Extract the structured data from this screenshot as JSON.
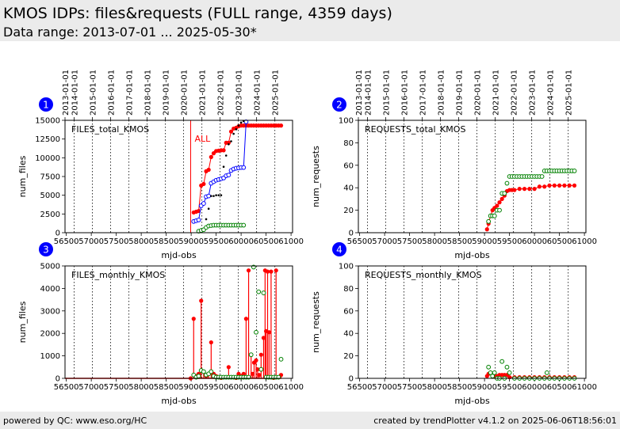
{
  "header": {
    "title": "KMOS IDPs: files&requests (FULL range, 4359 days)",
    "subtitle": "Data range: 2013-07-01 ... 2025-05-30*"
  },
  "footer": {
    "left": "powered by QC: www.eso.org/HC",
    "right": "created by trendPlotter v4.1.2 on 2025-06-06T18:56:01"
  },
  "colors": {
    "total": "#ff0000",
    "blue": "#0000ff",
    "green": "#008000",
    "black": "#000000",
    "badge": "#0000ff",
    "grid": "#000000"
  },
  "top_date_ticks": [
    {
      "mjd": 56474,
      "label": "2013-01-01"
    },
    {
      "mjd": 56658,
      "label": "2014-01-01"
    },
    {
      "mjd": 57023,
      "label": "2015-01-01"
    },
    {
      "mjd": 57388,
      "label": "2016-01-01"
    },
    {
      "mjd": 57754,
      "label": "2017-01-01"
    },
    {
      "mjd": 58119,
      "label": "2018-01-01"
    },
    {
      "mjd": 58484,
      "label": "2019-01-01"
    },
    {
      "mjd": 58849,
      "label": "2020-01-01"
    },
    {
      "mjd": 59215,
      "label": "2021-01-01"
    },
    {
      "mjd": 59580,
      "label": "2022-01-01"
    },
    {
      "mjd": 59945,
      "label": "2023-01-01"
    },
    {
      "mjd": 60310,
      "label": "2024-01-01"
    },
    {
      "mjd": 60676,
      "label": "2025-01-01"
    }
  ],
  "chart_data": [
    {
      "id": 1,
      "badge": "1",
      "type": "scatter",
      "title": "FILES_total_KMOS",
      "xlabel": "mjd-obs",
      "ylabel": "num_files",
      "xlim": [
        56474,
        61030
      ],
      "ylim": [
        0,
        15000
      ],
      "yticks": [
        0,
        2500,
        5000,
        7500,
        10000,
        12500,
        15000
      ],
      "xticks": [
        56500,
        57000,
        57500,
        58000,
        58500,
        59000,
        59500,
        60000,
        60500,
        61000
      ],
      "marker_line": {
        "x": 58990,
        "label": "ALL"
      },
      "series": [
        {
          "color": "red",
          "style": "filled-line",
          "x": [
            59050,
            59100,
            59150,
            59200,
            59250,
            59300,
            59350,
            59400,
            59450,
            59500,
            59550,
            59600,
            59650,
            59700,
            59750,
            59800,
            59850,
            59900,
            59950,
            60000,
            60050,
            60100,
            60150,
            60200,
            60250,
            60300,
            60350,
            60400,
            60450,
            60500,
            60550,
            60600,
            60650,
            60700,
            60750,
            60800
          ],
          "y": [
            2700,
            2800,
            2900,
            6300,
            6500,
            8200,
            8400,
            10100,
            10600,
            10900,
            10950,
            11000,
            11000,
            12000,
            12000,
            13500,
            13900,
            14000,
            14200,
            14300,
            14300,
            14300,
            14300,
            14300,
            14300,
            14300,
            14300,
            14300,
            14300,
            14300,
            14300,
            14300,
            14300,
            14300,
            14300,
            14300
          ]
        },
        {
          "color": "blue",
          "style": "open-line",
          "x": [
            59050,
            59100,
            59150,
            59200,
            59250,
            59300,
            59350,
            59400,
            59450,
            59500,
            59550,
            59600,
            59650,
            59700,
            59750,
            59800,
            59850,
            59900,
            59950,
            60000,
            60050,
            60100
          ],
          "y": [
            1500,
            1600,
            1700,
            3600,
            3900,
            4800,
            4900,
            6600,
            6800,
            7000,
            7100,
            7200,
            7300,
            7600,
            7700,
            8300,
            8500,
            8600,
            8650,
            8700,
            8700,
            14800
          ]
        },
        {
          "color": "black",
          "style": "small",
          "x": [
            59300,
            59350,
            59400,
            59450,
            59500,
            59550,
            59600,
            59650,
            59700,
            59750,
            59800,
            59850,
            59900,
            59950,
            60000,
            60050
          ],
          "y": [
            1800,
            3200,
            4900,
            4900,
            5000,
            5000,
            5000,
            8800,
            10300,
            11800,
            12200,
            13200,
            13800,
            14300,
            14700,
            14900
          ]
        },
        {
          "color": "green",
          "style": "open",
          "x": [
            59150,
            59200,
            59250,
            59300,
            59350,
            59400,
            59450,
            59500,
            59550,
            59600,
            59650,
            59700,
            59750,
            59800,
            59850,
            59900,
            59950,
            60000,
            60050
          ],
          "y": [
            200,
            300,
            400,
            700,
            900,
            950,
            1000,
            1000,
            1000,
            1000,
            1000,
            1000,
            1000,
            1000,
            1000,
            1000,
            1000,
            1000,
            1000
          ]
        }
      ]
    },
    {
      "id": 2,
      "badge": "2",
      "type": "scatter",
      "title": "REQUESTS_total_KMOS",
      "xlabel": "mjd-obs",
      "ylabel": "num_requests",
      "xlim": [
        56474,
        61030
      ],
      "ylim": [
        0,
        100
      ],
      "yticks": [
        0,
        20,
        40,
        60,
        80,
        100
      ],
      "xticks": [
        56500,
        57000,
        57500,
        58000,
        58500,
        59000,
        59500,
        60000,
        60500,
        61000
      ],
      "series": [
        {
          "color": "red",
          "style": "filled-line",
          "x": [
            59050,
            59080,
            59120,
            59160,
            59200,
            59250,
            59300,
            59350,
            59400,
            59450,
            59500,
            59550,
            59600,
            59700,
            59800,
            59900,
            60000,
            60100,
            60200,
            60300,
            60400,
            60500,
            60600,
            60700,
            60800
          ],
          "y": [
            3,
            8,
            15,
            20,
            22,
            24,
            27,
            30,
            33,
            37,
            38,
            38,
            38,
            39,
            39,
            39,
            39,
            41,
            41,
            42,
            42,
            42,
            42,
            42,
            42
          ]
        },
        {
          "color": "green",
          "style": "open",
          "x": [
            59080,
            59120,
            59160,
            59200,
            59250,
            59300,
            59350,
            59400,
            59450,
            59500,
            59550,
            59600,
            59650,
            59700,
            59750,
            59800,
            59850,
            59900,
            59950,
            60000,
            60050,
            60100,
            60150,
            60200,
            60250,
            60300,
            60350,
            60400,
            60450,
            60500,
            60550,
            60600,
            60650,
            60700,
            60750,
            60800
          ],
          "y": [
            10,
            15,
            15,
            15,
            20,
            20,
            35,
            35,
            44,
            50,
            50,
            50,
            50,
            50,
            50,
            50,
            50,
            50,
            50,
            50,
            50,
            50,
            50,
            55,
            55,
            55,
            55,
            55,
            55,
            55,
            55,
            55,
            55,
            55,
            55,
            55
          ]
        }
      ]
    },
    {
      "id": 3,
      "badge": "3",
      "type": "scatter",
      "title": "FILES_monthly_KMOS",
      "xlabel": "mjd-obs",
      "ylabel": "num_files",
      "xlim": [
        56474,
        61030
      ],
      "ylim": [
        0,
        5000
      ],
      "yticks": [
        0,
        1000,
        2000,
        3000,
        4000,
        5000
      ],
      "xticks": [
        56500,
        57000,
        57500,
        58000,
        58500,
        59000,
        59500,
        60000,
        60500,
        61000
      ],
      "series": [
        {
          "color": "red",
          "style": "stem",
          "x": [
            58990,
            59050,
            59100,
            59150,
            59200,
            59250,
            59300,
            59350,
            59400,
            59450,
            59500,
            59550,
            59600,
            59650,
            59700,
            59750,
            59800,
            59850,
            59900,
            59950,
            60000,
            60050,
            60100,
            60150,
            60200,
            60230,
            60260,
            60300,
            60330,
            60360,
            60400,
            60450,
            60480,
            60500,
            60530,
            60560,
            60600,
            60650,
            60700,
            60750,
            60800
          ],
          "y": [
            0,
            2650,
            100,
            200,
            3450,
            300,
            100,
            200,
            1600,
            200,
            100,
            50,
            20,
            50,
            50,
            500,
            50,
            50,
            20,
            200,
            100,
            200,
            2650,
            4800,
            1050,
            200,
            700,
            800,
            400,
            150,
            1050,
            1800,
            4800,
            2100,
            4750,
            2050,
            4750,
            20,
            4800,
            50,
            150
          ]
        },
        {
          "color": "green",
          "style": "open",
          "x": [
            59050,
            59100,
            59150,
            59200,
            59250,
            59300,
            59350,
            59400,
            59450,
            59500,
            59550,
            59600,
            59650,
            59700,
            59750,
            59800,
            59850,
            59900,
            59950,
            60000,
            60050,
            60100,
            60150,
            60200,
            60250,
            60300,
            60350,
            60400,
            60450,
            60500,
            60550,
            60600,
            60650,
            60700,
            60750,
            60800
          ],
          "y": [
            150,
            50,
            100,
            350,
            300,
            150,
            200,
            300,
            100,
            50,
            50,
            50,
            50,
            50,
            50,
            50,
            50,
            50,
            50,
            50,
            50,
            50,
            50,
            1050,
            4950,
            2050,
            3850,
            400,
            3800,
            50,
            50,
            50,
            50,
            50,
            50,
            850
          ]
        }
      ]
    },
    {
      "id": 4,
      "badge": "4",
      "type": "scatter",
      "title": "REQUESTS_monthly_KMOS",
      "xlabel": "mjd-obs",
      "ylabel": "num_requests",
      "xlim": [
        56474,
        61030
      ],
      "ylim": [
        0,
        100
      ],
      "yticks": [
        0,
        20,
        40,
        60,
        80,
        100
      ],
      "xticks": [
        56500,
        57000,
        57500,
        58000,
        58500,
        59000,
        59500,
        60000,
        60500,
        61000
      ],
      "series": [
        {
          "color": "red",
          "style": "filled-line",
          "x": [
            59050,
            59080,
            59120,
            59160,
            59200,
            59250,
            59300,
            59350,
            59400,
            59450,
            59500,
            59600,
            59700,
            59800,
            59900,
            60000,
            60100,
            60200,
            60300,
            60400,
            60500,
            60600,
            60700,
            60800
          ],
          "y": [
            2,
            4,
            5,
            4,
            2,
            2,
            3,
            3,
            3,
            3,
            1,
            1,
            1,
            1,
            1,
            1,
            1,
            1,
            1,
            1,
            1,
            1,
            1,
            1
          ]
        },
        {
          "color": "green",
          "style": "open",
          "x": [
            59080,
            59120,
            59160,
            59200,
            59250,
            59300,
            59350,
            59400,
            59450,
            59500,
            59600,
            59700,
            59800,
            59900,
            60000,
            60100,
            60200,
            60250,
            60300,
            60400,
            60500,
            60600,
            60700,
            60800
          ],
          "y": [
            10,
            5,
            2,
            5,
            0,
            0,
            15,
            0,
            10,
            5,
            0,
            0,
            0,
            0,
            0,
            0,
            0,
            5,
            0,
            0,
            0,
            0,
            0,
            0
          ]
        }
      ]
    }
  ]
}
